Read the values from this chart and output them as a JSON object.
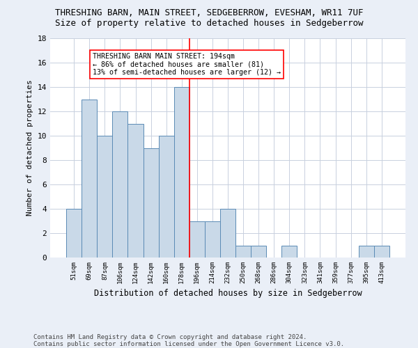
{
  "title": "THRESHING BARN, MAIN STREET, SEDGEBERROW, EVESHAM, WR11 7UF",
  "subtitle": "Size of property relative to detached houses in Sedgeberrow",
  "xlabel": "Distribution of detached houses by size in Sedgeberrow",
  "ylabel": "Number of detached properties",
  "footer1": "Contains HM Land Registry data © Crown copyright and database right 2024.",
  "footer2": "Contains public sector information licensed under the Open Government Licence v3.0.",
  "bar_labels": [
    "51sqm",
    "69sqm",
    "87sqm",
    "106sqm",
    "124sqm",
    "142sqm",
    "160sqm",
    "178sqm",
    "196sqm",
    "214sqm",
    "232sqm",
    "250sqm",
    "268sqm",
    "286sqm",
    "304sqm",
    "323sqm",
    "341sqm",
    "359sqm",
    "377sqm",
    "395sqm",
    "413sqm"
  ],
  "bar_values": [
    4,
    13,
    10,
    12,
    11,
    9,
    10,
    14,
    3,
    3,
    4,
    1,
    1,
    0,
    1,
    0,
    0,
    0,
    0,
    1,
    1
  ],
  "bar_color": "#c9d9e8",
  "bar_edge_color": "#5a8ab5",
  "vline_color": "red",
  "annotation_title": "THRESHING BARN MAIN STREET: 194sqm",
  "annotation_line1": "← 86% of detached houses are smaller (81)",
  "annotation_line2": "13% of semi-detached houses are larger (12) →",
  "annotation_box_color": "white",
  "annotation_box_edge_color": "red",
  "ylim": [
    0,
    18
  ],
  "yticks": [
    0,
    2,
    4,
    6,
    8,
    10,
    12,
    14,
    16,
    18
  ],
  "bg_color": "#eaeff7",
  "plot_bg_color": "white",
  "grid_color": "#c8d0de",
  "title_fontsize": 9,
  "subtitle_fontsize": 9,
  "footer_fontsize": 6.5
}
